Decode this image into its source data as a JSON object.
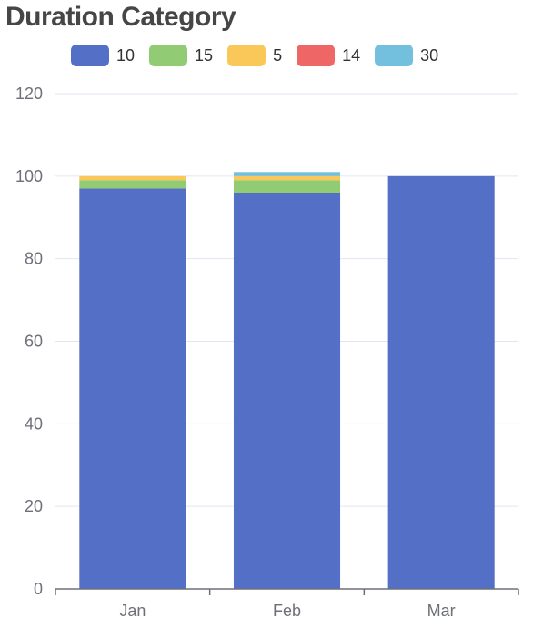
{
  "chart_data": {
    "type": "bar",
    "stacked": true,
    "title": "Duration Category",
    "xlabel": "",
    "ylabel": "",
    "categories": [
      "Jan",
      "Feb",
      "Mar"
    ],
    "series": [
      {
        "name": "10",
        "color": "#5470c6",
        "values": [
          97,
          96,
          100
        ]
      },
      {
        "name": "15",
        "color": "#91cc75",
        "values": [
          2,
          3,
          0
        ]
      },
      {
        "name": "5",
        "color": "#fac858",
        "values": [
          1,
          1,
          0
        ]
      },
      {
        "name": "14",
        "color": "#ee6666",
        "values": [
          0,
          0,
          0
        ]
      },
      {
        "name": "30",
        "color": "#73c0de",
        "values": [
          0,
          1,
          0
        ]
      }
    ],
    "ylim": [
      0,
      120
    ],
    "yticks": [
      "0",
      "20",
      "40",
      "60",
      "80",
      "100",
      "120"
    ],
    "grid": true,
    "legend_position": "top"
  }
}
